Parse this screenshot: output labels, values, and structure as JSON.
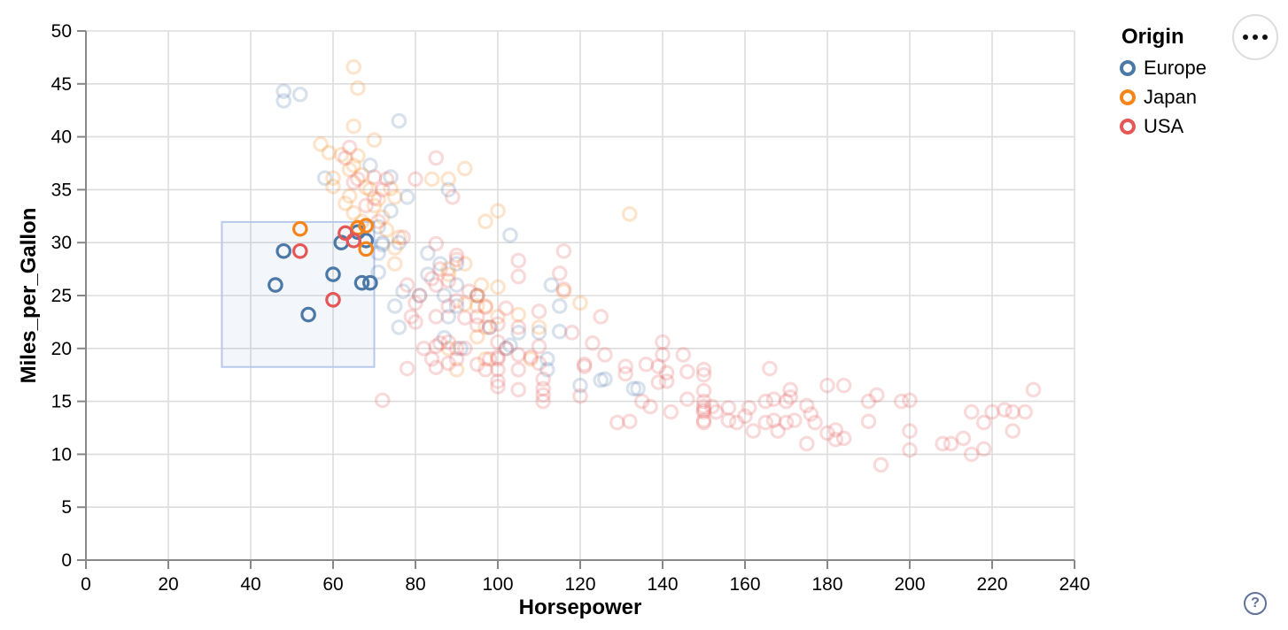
{
  "ui": {
    "menu_button": {
      "icon": "ellipsis-icon",
      "dots": 3
    },
    "help_button": {
      "label": "?"
    }
  },
  "legend": {
    "title": "Origin",
    "items": [
      {
        "label": "Europe",
        "color": "#4c78a8"
      },
      {
        "label": "Japan",
        "color": "#f58518"
      },
      {
        "label": "USA",
        "color": "#e45756"
      }
    ]
  },
  "chart_data": {
    "type": "scatter",
    "title": "",
    "xlabel": "Horsepower",
    "ylabel": "Miles_per_Gallon",
    "xlim": [
      0,
      240
    ],
    "ylim": [
      0,
      50
    ],
    "x_ticks": [
      0,
      20,
      40,
      60,
      80,
      100,
      120,
      140,
      160,
      180,
      200,
      220,
      240
    ],
    "y_ticks": [
      0,
      5,
      10,
      15,
      20,
      25,
      30,
      35,
      40,
      45,
      50
    ],
    "grid": true,
    "legend_position": "top-right",
    "point_style": {
      "shape": "open-circle",
      "radius": 7.2,
      "stroke_width": 3.2,
      "faded_opacity": 0.22
    },
    "brush": {
      "x": [
        33,
        70
      ],
      "y": [
        18.25,
        31.95
      ],
      "fill": "rgba(105,140,210,0.08)",
      "stroke": "#b7c8ea"
    },
    "series": [
      {
        "name": "Europe",
        "color": "#4c78a8",
        "points": [
          [
            46,
            26
          ],
          [
            48,
            29.2
          ],
          [
            54,
            23.2
          ],
          [
            60,
            27
          ],
          [
            62,
            30
          ],
          [
            66,
            31
          ],
          [
            68,
            30.2
          ],
          [
            67,
            26.2
          ],
          [
            69,
            26.2
          ],
          [
            48,
            44.3
          ],
          [
            48,
            43.4
          ],
          [
            52,
            44
          ],
          [
            58,
            36.1
          ],
          [
            76,
            41.5
          ],
          [
            88,
            35
          ],
          [
            78,
            34.3
          ],
          [
            74,
            36.2
          ],
          [
            74,
            33
          ],
          [
            69,
            37.3
          ],
          [
            71,
            31.5
          ],
          [
            72,
            30
          ],
          [
            76,
            30
          ],
          [
            83,
            29
          ],
          [
            71,
            29
          ],
          [
            72,
            29.8
          ],
          [
            90,
            28
          ],
          [
            86,
            28
          ],
          [
            103,
            30.7
          ],
          [
            113,
            26
          ],
          [
            90,
            26
          ],
          [
            87,
            25
          ],
          [
            95,
            25
          ],
          [
            81,
            25
          ],
          [
            90,
            24
          ],
          [
            75,
            24
          ],
          [
            115,
            24
          ],
          [
            83,
            27
          ],
          [
            71,
            27.2
          ],
          [
            77,
            25.4
          ],
          [
            98,
            22
          ],
          [
            88,
            23
          ],
          [
            87,
            21
          ],
          [
            91,
            20
          ],
          [
            102,
            20
          ],
          [
            110,
            21.5
          ],
          [
            105,
            21.5
          ],
          [
            115,
            21.6
          ],
          [
            103,
            20.3
          ],
          [
            112,
            19
          ],
          [
            112,
            18
          ],
          [
            120,
            16.5
          ],
          [
            125,
            17
          ],
          [
            133,
            16.2
          ],
          [
            126,
            17.1
          ],
          [
            134,
            16.2
          ],
          [
            76,
            22
          ]
        ]
      },
      {
        "name": "Japan",
        "color": "#f58518",
        "points": [
          [
            52,
            31.3
          ],
          [
            66,
            31.4
          ],
          [
            68,
            31.6
          ],
          [
            68,
            29.4
          ],
          [
            65,
            46.6
          ],
          [
            66,
            44.6
          ],
          [
            65,
            41
          ],
          [
            70,
            39.7
          ],
          [
            57,
            39.3
          ],
          [
            59,
            38.5
          ],
          [
            62,
            38.3
          ],
          [
            66,
            38.2
          ],
          [
            65,
            37.3
          ],
          [
            64,
            36.9
          ],
          [
            67,
            36.4
          ],
          [
            60,
            35.3
          ],
          [
            68,
            35.2
          ],
          [
            64,
            34.4
          ],
          [
            63,
            33.7
          ],
          [
            70,
            33.5
          ],
          [
            69,
            35
          ],
          [
            60,
            36.1
          ],
          [
            92,
            37
          ],
          [
            84,
            36
          ],
          [
            88,
            36
          ],
          [
            75,
            34.3
          ],
          [
            65,
            32.8
          ],
          [
            67,
            32
          ],
          [
            72,
            32.4
          ],
          [
            74,
            35.1
          ],
          [
            71,
            34.1
          ],
          [
            97,
            32
          ],
          [
            100,
            33
          ],
          [
            132,
            32.7
          ],
          [
            75,
            29.5
          ],
          [
            75,
            28
          ],
          [
            76,
            30.5
          ],
          [
            88,
            27
          ],
          [
            88,
            27.5
          ],
          [
            92,
            28
          ],
          [
            96,
            26
          ],
          [
            100,
            25.8
          ],
          [
            116,
            25.4
          ],
          [
            120,
            24.3
          ],
          [
            97,
            24
          ],
          [
            95,
            24
          ],
          [
            95,
            25
          ],
          [
            92,
            24.2
          ],
          [
            100,
            23
          ],
          [
            105,
            23.2
          ],
          [
            97,
            22
          ],
          [
            95,
            21.1
          ],
          [
            88,
            20
          ],
          [
            90,
            18
          ],
          [
            97,
            19
          ],
          [
            108,
            19
          ],
          [
            110,
            22
          ],
          [
            73,
            31.2
          ]
        ]
      },
      {
        "name": "USA",
        "color": "#e45756",
        "points": [
          [
            52,
            29.2
          ],
          [
            60,
            24.6
          ],
          [
            63,
            30.9
          ],
          [
            65,
            30.2
          ],
          [
            64,
            39
          ],
          [
            63,
            38
          ],
          [
            85,
            38
          ],
          [
            66,
            36
          ],
          [
            80,
            36
          ],
          [
            70,
            36.2
          ],
          [
            70,
            34.2
          ],
          [
            89,
            34.3
          ],
          [
            65,
            35.7
          ],
          [
            72,
            35
          ],
          [
            68,
            33.5
          ],
          [
            71,
            32
          ],
          [
            73,
            36
          ],
          [
            77,
            30.5
          ],
          [
            85,
            29.9
          ],
          [
            90,
            28.8
          ],
          [
            90,
            28.4
          ],
          [
            84,
            26.6
          ],
          [
            86,
            27.5
          ],
          [
            88,
            26.4
          ],
          [
            90,
            24.5
          ],
          [
            85,
            26
          ],
          [
            85,
            23
          ],
          [
            80,
            24.3
          ],
          [
            80,
            22.5
          ],
          [
            81,
            25
          ],
          [
            92,
            22.9
          ],
          [
            93,
            25.4
          ],
          [
            95,
            23
          ],
          [
            95,
            25
          ],
          [
            97,
            23.9
          ],
          [
            98,
            22
          ],
          [
            100,
            22.3
          ],
          [
            102,
            23.8
          ],
          [
            105,
            22
          ],
          [
            105,
            28.3
          ],
          [
            105,
            26.8
          ],
          [
            115,
            27.1
          ],
          [
            116,
            29.2
          ],
          [
            116,
            25.6
          ],
          [
            125,
            23
          ],
          [
            110,
            23.5
          ],
          [
            88,
            24
          ],
          [
            95,
            22.2
          ],
          [
            78,
            26
          ],
          [
            79,
            23
          ],
          [
            118,
            21.5
          ],
          [
            78,
            18.1
          ],
          [
            82,
            20
          ],
          [
            84,
            19
          ],
          [
            85,
            20.2
          ],
          [
            86,
            20.5
          ],
          [
            88,
            18.6
          ],
          [
            90,
            19
          ],
          [
            90,
            20
          ],
          [
            92,
            20
          ],
          [
            95,
            18.5
          ],
          [
            97,
            18
          ],
          [
            98,
            19
          ],
          [
            100,
            19
          ],
          [
            100,
            19.2
          ],
          [
            100,
            18
          ],
          [
            102,
            20
          ],
          [
            105,
            18
          ],
          [
            105,
            19.4
          ],
          [
            108,
            19.2
          ],
          [
            110,
            18.6
          ],
          [
            110,
            20.2
          ],
          [
            100,
            20.6
          ],
          [
            88,
            20.6
          ],
          [
            85,
            18.2
          ],
          [
            100,
            16.9
          ],
          [
            100,
            16.4
          ],
          [
            105,
            16.1
          ],
          [
            111,
            17.1
          ],
          [
            111,
            16.2
          ],
          [
            111,
            15.6
          ],
          [
            111,
            15
          ],
          [
            72,
            15.1
          ],
          [
            121,
            18.5
          ],
          [
            123,
            20.5
          ],
          [
            126,
            19.4
          ],
          [
            121,
            18.3
          ],
          [
            131,
            18.3
          ],
          [
            131,
            17.6
          ],
          [
            136,
            18.5
          ],
          [
            140,
            20.6
          ],
          [
            140,
            19.4
          ],
          [
            139,
            18.3
          ],
          [
            141,
            17.7
          ],
          [
            139,
            16.8
          ],
          [
            141,
            16.9
          ],
          [
            145,
            19.4
          ],
          [
            146,
            17.8
          ],
          [
            146,
            15.2
          ],
          [
            129,
            13
          ],
          [
            132,
            13.1
          ],
          [
            137,
            14.5
          ],
          [
            142,
            14
          ],
          [
            135,
            15
          ],
          [
            120,
            15.5
          ],
          [
            150,
            18
          ],
          [
            150,
            17.5
          ],
          [
            150,
            16
          ],
          [
            150,
            15
          ],
          [
            150,
            14.5
          ],
          [
            150,
            14
          ],
          [
            150,
            14.2
          ],
          [
            150,
            13
          ],
          [
            150,
            13.2
          ],
          [
            152,
            14.5
          ],
          [
            153,
            14
          ],
          [
            158,
            13
          ],
          [
            156,
            14.4
          ],
          [
            156,
            13.2
          ],
          [
            160,
            13.6
          ],
          [
            161,
            14.4
          ],
          [
            162,
            12.2
          ],
          [
            165,
            15
          ],
          [
            165,
            13
          ],
          [
            166,
            18.1
          ],
          [
            167,
            15.2
          ],
          [
            167,
            13.2
          ],
          [
            168,
            12.2
          ],
          [
            170,
            15
          ],
          [
            170,
            13
          ],
          [
            171,
            16.1
          ],
          [
            171,
            15.4
          ],
          [
            172,
            13.2
          ],
          [
            175,
            14.6
          ],
          [
            176,
            13.8
          ],
          [
            177,
            13
          ],
          [
            175,
            11
          ],
          [
            180,
            12
          ],
          [
            184,
            11.5
          ],
          [
            180,
            16.5
          ],
          [
            184,
            16.5
          ],
          [
            190,
            15
          ],
          [
            190,
            13.1
          ],
          [
            192,
            15.6
          ],
          [
            193,
            9
          ],
          [
            198,
            15
          ],
          [
            200,
            15.1
          ],
          [
            200,
            12.2
          ],
          [
            200,
            10.4
          ],
          [
            208,
            11
          ],
          [
            210,
            11
          ],
          [
            213,
            11.5
          ],
          [
            215,
            14
          ],
          [
            215,
            10
          ],
          [
            218,
            13
          ],
          [
            218,
            10.5
          ],
          [
            220,
            14
          ],
          [
            223,
            14.2
          ],
          [
            225,
            14
          ],
          [
            228,
            14
          ],
          [
            225,
            12.2
          ],
          [
            230,
            16.1
          ],
          [
            182,
            12.3
          ],
          [
            182,
            11.4
          ]
        ]
      }
    ]
  }
}
